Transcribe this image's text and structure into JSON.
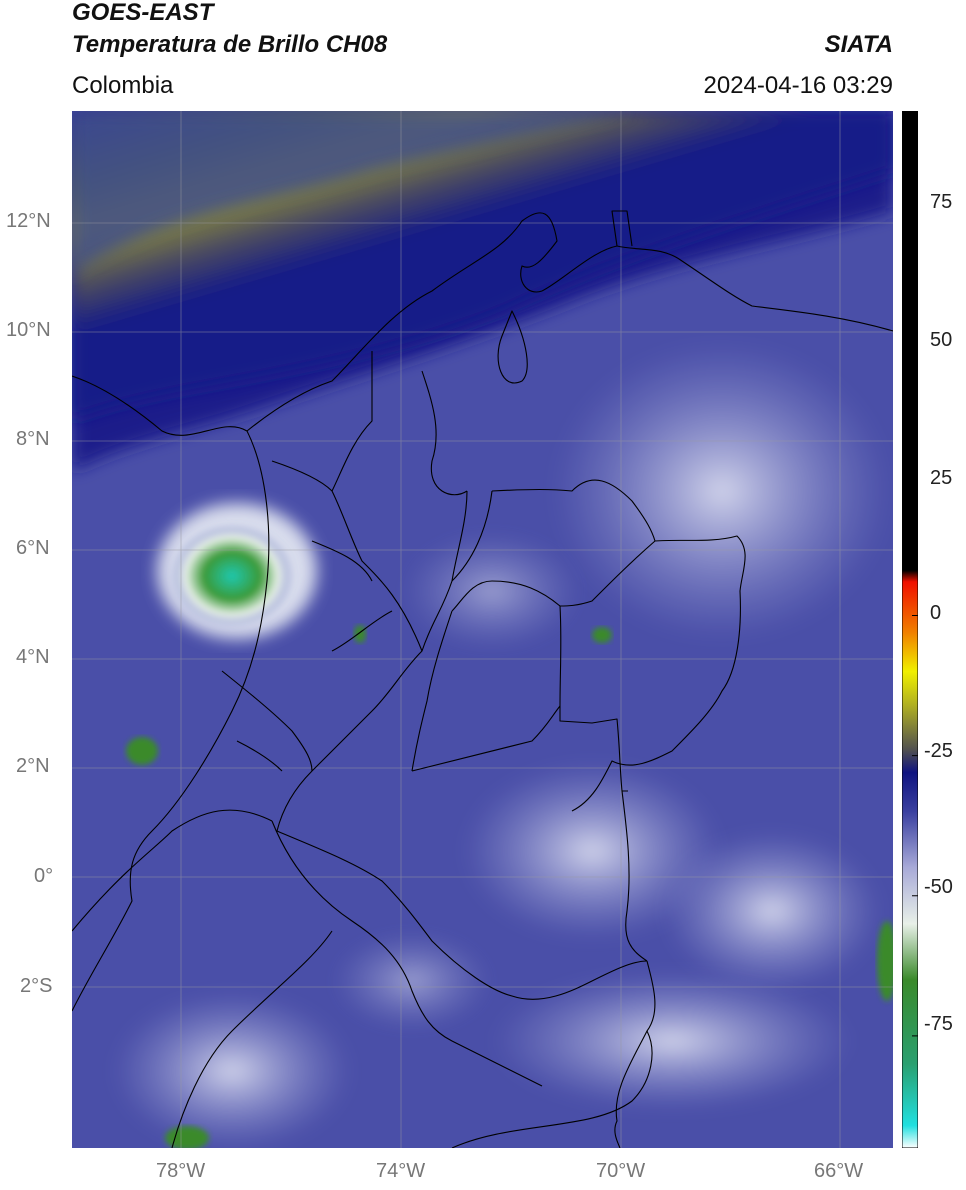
{
  "header": {
    "satellite": "GOES-EAST",
    "product": "Temperatura de Brillo CH08",
    "org": "SIATA",
    "region": "Colombia",
    "datetime": "2024-04-16 03:29"
  },
  "map": {
    "lat_labels": [
      "12°N",
      "10°N",
      "8°N",
      "6°N",
      "4°N",
      "2°N",
      "0°",
      "2°S"
    ],
    "lon_labels": [
      "78°W",
      "74°W",
      "70°W",
      "66°W"
    ],
    "extent": {
      "lon": [
        -80,
        -65
      ],
      "lat": [
        -5,
        14
      ]
    },
    "gridlines": true
  },
  "colorbar": {
    "tick_labels": [
      "75",
      "50",
      "25",
      "0",
      "-25",
      "-50",
      "-75"
    ],
    "range": [
      -95,
      90
    ],
    "stops": [
      {
        "value": -95,
        "color": "#ffffff"
      },
      {
        "value": -91,
        "color": "#20e0e0"
      },
      {
        "value": -80,
        "color": "#2aa070"
      },
      {
        "value": -65,
        "color": "#3a8a2a"
      },
      {
        "value": -55,
        "color": "#e8f0e8"
      },
      {
        "value": -45,
        "color": "#a8aad8"
      },
      {
        "value": -35,
        "color": "#3a40a0"
      },
      {
        "value": -28,
        "color": "#101480"
      },
      {
        "value": -24,
        "color": "#505050"
      },
      {
        "value": -16,
        "color": "#b0b020"
      },
      {
        "value": -10,
        "color": "#f0f000"
      },
      {
        "value": -3,
        "color": "#f08000"
      },
      {
        "value": 6,
        "color": "#f01000"
      },
      {
        "value": 8,
        "color": "#000000"
      },
      {
        "value": 90,
        "color": "#000000"
      }
    ]
  }
}
